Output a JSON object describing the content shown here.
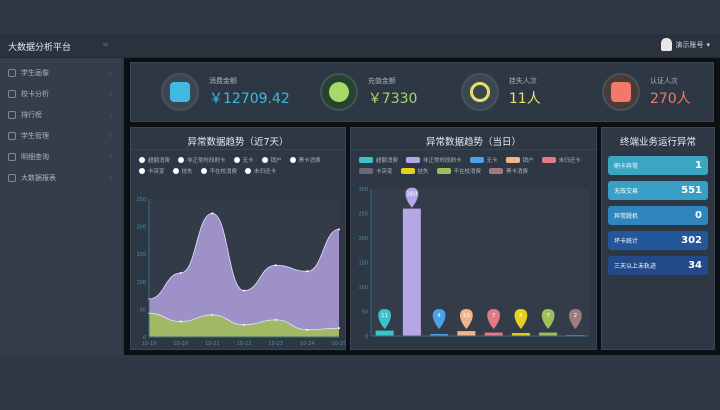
{
  "header": {
    "title": "大数据分析平台",
    "user": "演示账号"
  },
  "sidebar": {
    "items": [
      {
        "label": "学生画像"
      },
      {
        "label": "校卡分析"
      },
      {
        "label": "排行榜"
      },
      {
        "label": "学生管理"
      },
      {
        "label": "明细查询"
      },
      {
        "label": "大数据报表"
      }
    ]
  },
  "stats": [
    {
      "label": "消费金额",
      "value": "￥12709.42",
      "color": "#3fb9e0",
      "icon": "building-coin-icon"
    },
    {
      "label": "充值金额",
      "value": "￥7330",
      "color": "#a6d86a",
      "icon": "money-bag-icon"
    },
    {
      "label": "挂失人次",
      "value": "11人",
      "color": "#e3e36a",
      "icon": "hand-pointer-icon"
    },
    {
      "label": "认证人次",
      "value": "270人",
      "color": "#f2796a",
      "icon": "id-card-icon"
    }
  ],
  "chart_data": [
    {
      "type": "area",
      "title": "异常数据趋势（近7天）",
      "legend": [
        "超额消费",
        "非正常时段刷卡",
        "无卡",
        "销户",
        "黑卡消费",
        "卡突变",
        "挂失",
        "不在校消费",
        "未归还卡"
      ],
      "x": [
        "10-19",
        "10-20",
        "10-21",
        "10-22",
        "10-23",
        "10-24",
        "10-25"
      ],
      "ylim": [
        0,
        250
      ],
      "yticks": [
        0,
        50,
        100,
        150,
        200,
        250
      ],
      "series": [
        {
          "name": "非正常时段刷卡",
          "values": [
            69,
            116,
            224,
            84,
            130,
            119,
            195
          ],
          "color": "#a99bd6"
        },
        {
          "name": "不在校消费",
          "values": [
            43,
            28,
            40,
            22,
            31,
            13,
            16
          ],
          "color": "#a2bd5a"
        }
      ]
    },
    {
      "type": "bar",
      "title": "异常数据趋势（当日）",
      "legend": [
        {
          "name": "超额消费",
          "color": "#3bc4c8"
        },
        {
          "name": "非正常时段刷卡",
          "color": "#b6a6e6"
        },
        {
          "name": "无卡",
          "color": "#4aa3e8"
        },
        {
          "name": "销户",
          "color": "#f2b58a"
        },
        {
          "name": "未归还卡",
          "color": "#e07a86"
        },
        {
          "name": "卡突变",
          "color": "#666c74"
        },
        {
          "name": "挂失",
          "color": "#e6d21e"
        },
        {
          "name": "不在校消费",
          "color": "#9cc05a"
        },
        {
          "name": "黑卡消费",
          "color": "#a07a80"
        }
      ],
      "categories": [
        "超额消费",
        "非正常时段刷卡",
        "无卡",
        "销户",
        "未归还卡",
        "挂失",
        "不在校消费",
        "黑卡消费"
      ],
      "values": [
        11,
        260,
        4,
        10,
        7,
        6,
        7,
        2
      ],
      "colors": [
        "#3bc4c8",
        "#b6a6e6",
        "#4aa3e8",
        "#f2b58a",
        "#e07a86",
        "#e6d21e",
        "#9cc05a",
        "#a07a80"
      ],
      "ylim": [
        0,
        300
      ],
      "yticks": [
        0,
        50,
        100,
        150,
        200,
        250,
        300
      ]
    }
  ],
  "terminal": {
    "title": "终端业务运行异常",
    "rows": [
      {
        "label": "刷卡异常",
        "value": "1",
        "color": "#3aa6c2"
      },
      {
        "label": "无效交易",
        "value": "551",
        "color": "#3a9fc6"
      },
      {
        "label": "异常脱机",
        "value": "0",
        "color": "#2f86bd"
      },
      {
        "label": "坏卡统计",
        "value": "302",
        "color": "#24569a"
      },
      {
        "label": "三天以上未轨迹",
        "value": "34",
        "color": "#224a88"
      }
    ]
  }
}
